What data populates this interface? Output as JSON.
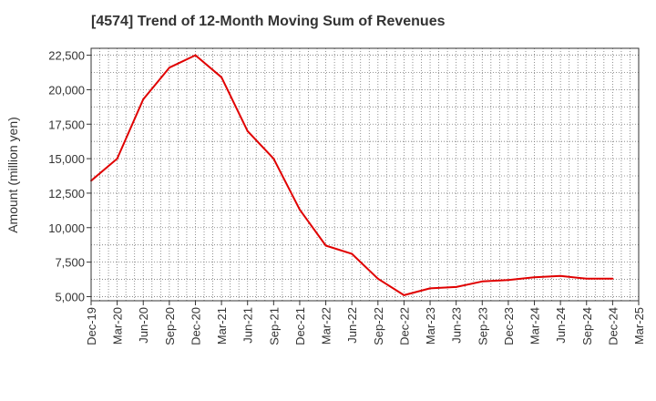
{
  "chart_data": {
    "type": "line",
    "title": "[4574]  Trend of 12-Month Moving Sum of Revenues",
    "xlabel": "",
    "ylabel": "Amount (million yen)",
    "ylim": [
      4700,
      23000
    ],
    "yticks": [
      5000,
      7500,
      10000,
      12500,
      15000,
      17500,
      20000,
      22500
    ],
    "ytick_labels": [
      "5,000",
      "7,500",
      "10,000",
      "12,500",
      "15,000",
      "17,500",
      "20,000",
      "22,500"
    ],
    "xtick_labels": [
      "Dec-19",
      "Mar-20",
      "Jun-20",
      "Sep-20",
      "Dec-20",
      "Mar-21",
      "Jun-21",
      "Sep-21",
      "Dec-21",
      "Mar-22",
      "Jun-22",
      "Sep-22",
      "Dec-22",
      "Mar-23",
      "Jun-23",
      "Sep-23",
      "Dec-23",
      "Mar-24",
      "Jun-24",
      "Sep-24",
      "Dec-24",
      "Mar-25"
    ],
    "grid": true,
    "series": [
      {
        "color": "#e00000",
        "x": [
          "Dec-19",
          "Mar-20",
          "Jun-20",
          "Sep-20",
          "Dec-20",
          "Mar-21",
          "Jun-21",
          "Sep-21",
          "Dec-21",
          "Mar-22",
          "Jun-22",
          "Sep-22",
          "Dec-22",
          "Mar-23",
          "Jun-23",
          "Sep-23",
          "Dec-23",
          "Mar-24",
          "Jun-24",
          "Sep-24",
          "Dec-24"
        ],
        "values": [
          13400,
          15000,
          19300,
          21600,
          22500,
          20900,
          17000,
          15000,
          11300,
          8700,
          8100,
          6300,
          5100,
          5600,
          5700,
          6100,
          6200,
          6400,
          6500,
          6300,
          6300
        ]
      }
    ]
  }
}
